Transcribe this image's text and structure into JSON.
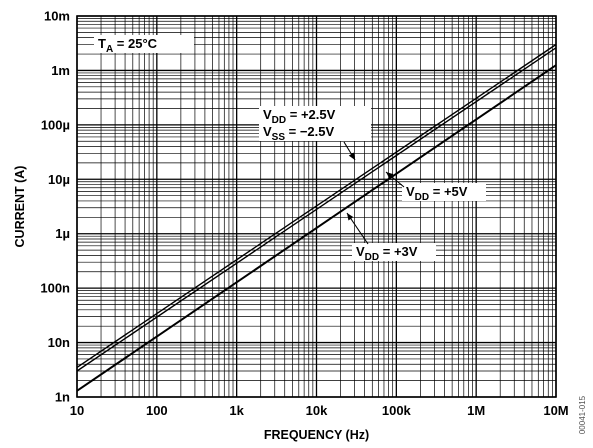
{
  "chart_data": {
    "type": "line",
    "title": "",
    "xlabel": "FREQUENCY (Hz)",
    "ylabel": "CURRENT (A)",
    "xscale": "log",
    "yscale": "log",
    "xlim": [
      10,
      10000000
    ],
    "ylim": [
      1e-09,
      0.01
    ],
    "grid": true,
    "x_ticks": [
      {
        "value": 10,
        "label": "10"
      },
      {
        "value": 100,
        "label": "100"
      },
      {
        "value": 1000,
        "label": "1k"
      },
      {
        "value": 10000,
        "label": "10k"
      },
      {
        "value": 100000,
        "label": "100k"
      },
      {
        "value": 1000000,
        "label": "1M"
      },
      {
        "value": 10000000,
        "label": "10M"
      }
    ],
    "y_ticks": [
      {
        "value": 1e-09,
        "label": "1n"
      },
      {
        "value": 1e-08,
        "label": "10n"
      },
      {
        "value": 1e-07,
        "label": "100n"
      },
      {
        "value": 1e-06,
        "label": "1µ"
      },
      {
        "value": 1e-05,
        "label": "10µ"
      },
      {
        "value": 0.0001,
        "label": "100µ"
      },
      {
        "value": 0.001,
        "label": "1m"
      },
      {
        "value": 0.01,
        "label": "10m"
      }
    ],
    "series": [
      {
        "x": [
          10,
          10000000
        ],
        "y": [
          3.5e-09,
          0.003
        ]
      },
      {
        "x": [
          10,
          10000000
        ],
        "y": [
          3e-09,
          0.0026
        ]
      },
      {
        "x": [
          10,
          10000000
        ],
        "y": [
          1.3e-09,
          0.00125
        ]
      }
    ],
    "annotations": {
      "temp": {
        "main": "T",
        "sub": "A",
        "rest": " = 25°C"
      },
      "vdd25": {
        "main": "V",
        "sub": "DD",
        "rest": " = +2.5V"
      },
      "vss25": {
        "main": "V",
        "sub": "SS",
        "rest": "  = −2.5V"
      },
      "vdd5": {
        "main": "V",
        "sub": "DD",
        "rest": " = +5V"
      },
      "vdd3": {
        "main": "V",
        "sub": "DD",
        "rest": " = +3V"
      }
    },
    "side_code": "00041-015"
  }
}
